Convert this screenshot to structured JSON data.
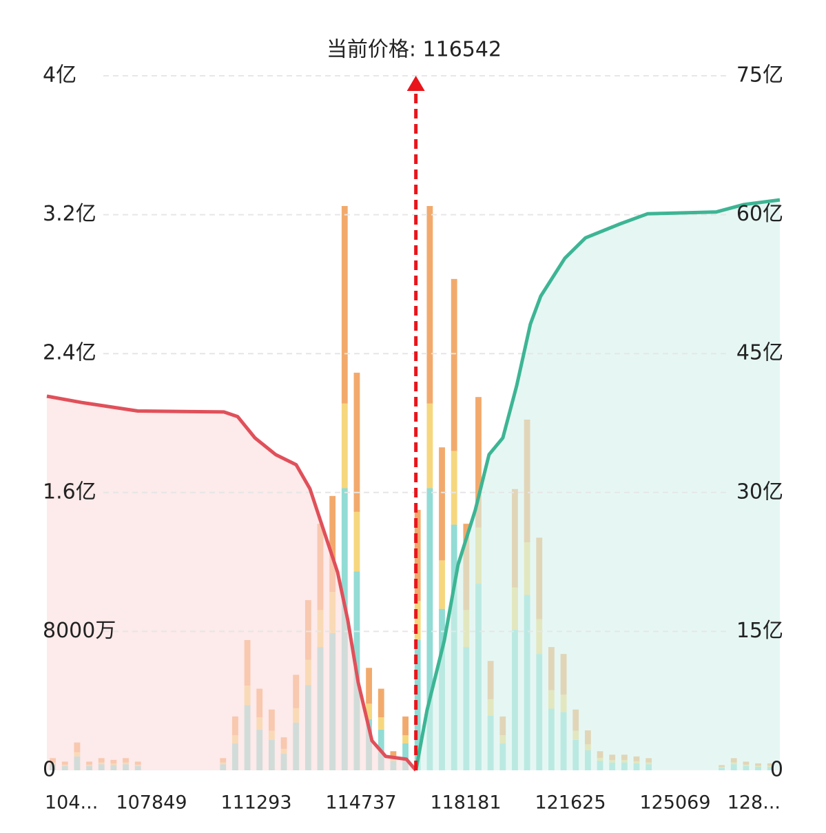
{
  "chart_data": {
    "type": "bar",
    "marker": {
      "x": 116542,
      "label": "当前价格: 116542",
      "color": "#e8151b"
    },
    "xlim": [
      104405,
      128513
    ],
    "xticks": [
      {
        "value": 104405,
        "label": "104..."
      },
      107849,
      111293,
      114737,
      118181,
      121625,
      125069,
      {
        "value": 128513,
        "label": "128..."
      }
    ],
    "ylim": [
      0,
      400000000
    ],
    "yticks": [
      0,
      {
        "value": 80000000,
        "label": "8000万"
      },
      {
        "value": 160000000,
        "label": "1.6亿"
      },
      {
        "value": 240000000,
        "label": "2.4亿"
      },
      {
        "value": 320000000,
        "label": "3.2亿"
      },
      {
        "value": 400000000,
        "label": "4亿"
      }
    ],
    "y2lim": [
      0,
      7500000000
    ],
    "y2ticks": [
      0,
      {
        "value": 1500000000,
        "label": "15亿"
      },
      {
        "value": 3000000000,
        "label": "30亿"
      },
      {
        "value": 4500000000,
        "label": "45亿"
      },
      {
        "value": 6000000000,
        "label": "60亿"
      },
      {
        "value": 7500000000,
        "label": "75亿"
      }
    ],
    "grid": true,
    "x": [
      104600,
      105000,
      105400,
      105800,
      106200,
      106600,
      107000,
      107400,
      107800,
      108200,
      108600,
      109000,
      109400,
      109800,
      110200,
      110600,
      111000,
      111400,
      111800,
      112200,
      112600,
      113000,
      113400,
      113800,
      114200,
      114600,
      115000,
      115400,
      115800,
      116200,
      116600,
      117000,
      117400,
      117800,
      118200,
      118600,
      119000,
      119400,
      119800,
      120200,
      120600,
      121000,
      121400,
      121800,
      122200,
      122600,
      123000,
      123400,
      123800,
      124200,
      124600,
      125000,
      125400,
      125800,
      126200,
      126600,
      127000,
      127400,
      127800,
      128200
    ],
    "series": [
      {
        "type": "bar",
        "color": "#92dcd5",
        "values": [
          3500000,
          2500000,
          8000000,
          2500000,
          3500000,
          3000000,
          3500000,
          2500000,
          0,
          0,
          0,
          0,
          0,
          0,
          3500000,
          15500000,
          37500000,
          23500000,
          17500000,
          9500000,
          27500000,
          49000000,
          71000000,
          79000000,
          162500000,
          114500000,
          29500000,
          23500000,
          5500000,
          15500000,
          75000000,
          162500000,
          93000000,
          141500000,
          71000000,
          107500000,
          31500000,
          15500000,
          81000000,
          101000000,
          67000000,
          35500000,
          33500000,
          17500000,
          11500000,
          5500000,
          4500000,
          4500000,
          4000000,
          3500000,
          0,
          0,
          0,
          0,
          0,
          1500000,
          3500000,
          2500000,
          2000000,
          2000000
        ]
      },
      {
        "type": "bar",
        "color": "#f6d77e",
        "values": [
          1050000,
          750000,
          2400000,
          750000,
          1050000,
          900000,
          1050000,
          750000,
          0,
          0,
          0,
          0,
          0,
          0,
          1050000,
          4650000,
          11250000,
          7050000,
          5250000,
          2850000,
          8250000,
          14700000,
          21300000,
          23700000,
          48750000,
          34350000,
          8850000,
          7050000,
          1650000,
          4650000,
          22500000,
          48750000,
          27900000,
          42450000,
          21300000,
          32250000,
          9450000,
          4650000,
          24300000,
          30300000,
          20100000,
          10650000,
          10050000,
          5250000,
          3450000,
          1650000,
          1350000,
          1350000,
          1200000,
          1050000,
          0,
          0,
          0,
          0,
          0,
          450000,
          1050000,
          750000,
          600000,
          600000
        ]
      },
      {
        "type": "bar",
        "color": "#f2aa6c",
        "values": [
          2450000,
          1750000,
          5600000,
          1750000,
          2450000,
          2100000,
          2450000,
          1750000,
          0,
          0,
          0,
          0,
          0,
          0,
          2450000,
          10850000,
          26250000,
          16450000,
          12250000,
          6650000,
          19250000,
          34300000,
          49700000,
          55300000,
          113750000,
          80150000,
          20650000,
          16450000,
          3850000,
          10850000,
          52500000,
          113750000,
          65100000,
          99050000,
          49700000,
          75250000,
          22050000,
          10850000,
          56700000,
          70700000,
          46900000,
          24850000,
          23450000,
          12250000,
          8050000,
          3850000,
          3150000,
          3150000,
          2800000,
          2450000,
          0,
          0,
          0,
          0,
          0,
          1050000,
          2450000,
          1750000,
          1400000,
          1400000
        ]
      },
      {
        "type": "line",
        "axis": "y2",
        "color": "#e0505a",
        "fill": "#fbdcdc",
        "x": [
          104405,
          105583,
          107395,
          110227,
          110680,
          111247,
          111927,
          112606,
          113059,
          113512,
          113966,
          114305,
          114645,
          115098,
          115551,
          116231,
          116542
        ],
        "values": [
          4040000000,
          3970000000,
          3880000000,
          3870000000,
          3820000000,
          3590000000,
          3410000000,
          3300000000,
          3040000000,
          2590000000,
          2140000000,
          1620000000,
          950000000,
          320000000,
          150000000,
          120000000,
          0
        ]
      },
      {
        "type": "line",
        "axis": "y2",
        "color": "#3db594",
        "fill": "#d6f1eb",
        "x": [
          116542,
          116911,
          117477,
          117930,
          118496,
          118950,
          119403,
          119856,
          120309,
          120649,
          121442,
          122121,
          123254,
          124160,
          126426,
          127332,
          128513
        ],
        "values": [
          0,
          650000000,
          1400000000,
          2220000000,
          2810000000,
          3410000000,
          3590000000,
          4150000000,
          4820000000,
          5120000000,
          5530000000,
          5750000000,
          5900000000,
          6010000000,
          6030000000,
          6110000000,
          6160000000
        ]
      }
    ]
  }
}
